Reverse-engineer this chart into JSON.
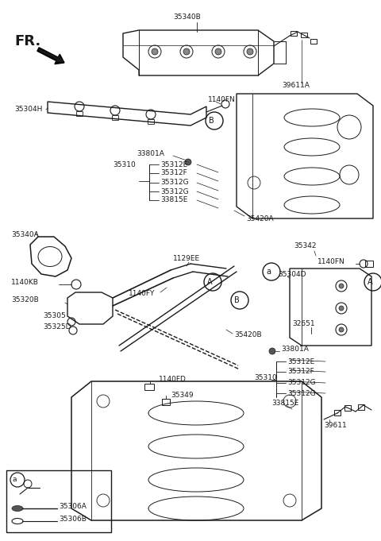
{
  "bg_color": "#ffffff",
  "line_color": "#1a1a1a",
  "fig_width": 4.8,
  "fig_height": 6.81,
  "dpi": 100,
  "components": {
    "top_rail_label": "35340B",
    "wire_label": "39611A",
    "pipe_label": "35304H",
    "connector_label": "1140FN",
    "circle_B": "B",
    "inj_label1": "33801A",
    "inj_label2": "35312E",
    "inj_label3": "35312F",
    "rail_label": "35310",
    "inj_label4": "35312G",
    "inj_label5": "35312G",
    "sensor_label": "33815E",
    "fuel_label": "35420A",
    "regulator_label": "35340A",
    "hose_label": "1129EE",
    "circle_A": "A",
    "circle_B2": "B",
    "kb_label": "1140KB",
    "fy_label": "1140FY",
    "snap_label": "35342",
    "reg_label": "35320B",
    "part1": "35305",
    "part2": "35325D",
    "rail2_label": "35304D",
    "fn_right": "1140FN",
    "circle_A2": "A",
    "pin_label": "32651",
    "inj2_1": "33801A",
    "inj2_2": "35312E",
    "inj2_3": "35312F",
    "rail2": "35310",
    "inj2_4": "35312G",
    "inj2_5": "35312G",
    "fuel2": "35420B",
    "fd_label": "1140FD",
    "bolt_label": "35349",
    "sensor2": "33815E",
    "wire2": "39611",
    "inset_a": "a",
    "inset_p1": "35306A",
    "inset_p2": "35306B",
    "main_a": "a",
    "FR": "FR."
  }
}
